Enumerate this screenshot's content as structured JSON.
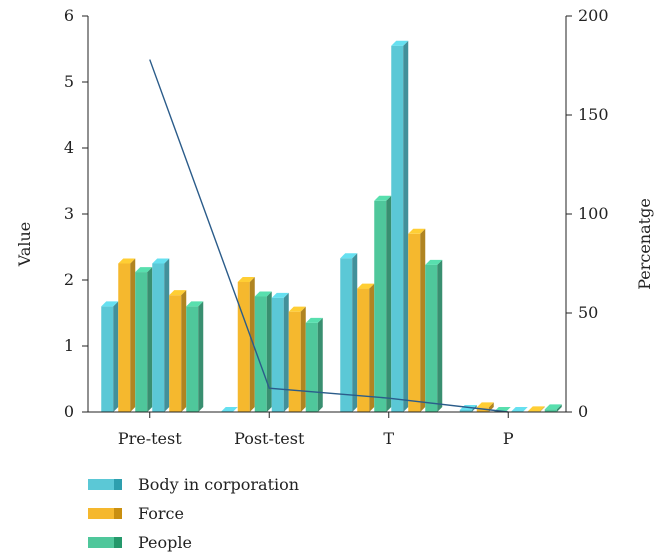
{
  "chart_data": {
    "type": "bar",
    "categories": [
      "Pre-test",
      "Post-test",
      "T",
      "P"
    ],
    "series": [
      {
        "name": "Body in corporation",
        "color": "#5bc8d6",
        "values": [
          [
            1.6,
            2.25
          ],
          [
            0.0,
            1.73
          ],
          [
            2.33,
            5.55
          ],
          [
            0.03,
            0.0
          ]
        ]
      },
      {
        "name": "Force",
        "color": "#f5b82e",
        "values": [
          [
            2.25,
            1.77
          ],
          [
            1.97,
            1.52
          ],
          [
            1.87,
            2.7
          ],
          [
            0.07,
            0.01
          ]
        ]
      },
      {
        "name": "People",
        "color": "#4fc79b",
        "values": [
          [
            2.12,
            1.6
          ],
          [
            1.75,
            1.35
          ],
          [
            3.2,
            2.23
          ],
          [
            0.0,
            0.04
          ]
        ]
      }
    ],
    "line": {
      "color": "#2b5c8a",
      "x": [
        "Pre-test",
        "Post-test",
        "T",
        "P"
      ],
      "values": [
        178,
        12,
        7,
        0
      ]
    },
    "ylabel": "Value",
    "y2label": "Percenatge",
    "ylim": [
      0,
      6
    ],
    "y2lim": [
      0,
      200
    ],
    "yticks": [
      "0",
      "1",
      "2",
      "3",
      "4",
      "5",
      "6"
    ],
    "y2ticks": [
      "0",
      "50",
      "100",
      "150",
      "200"
    ],
    "legend_position": "bottom-left",
    "grid": false
  }
}
